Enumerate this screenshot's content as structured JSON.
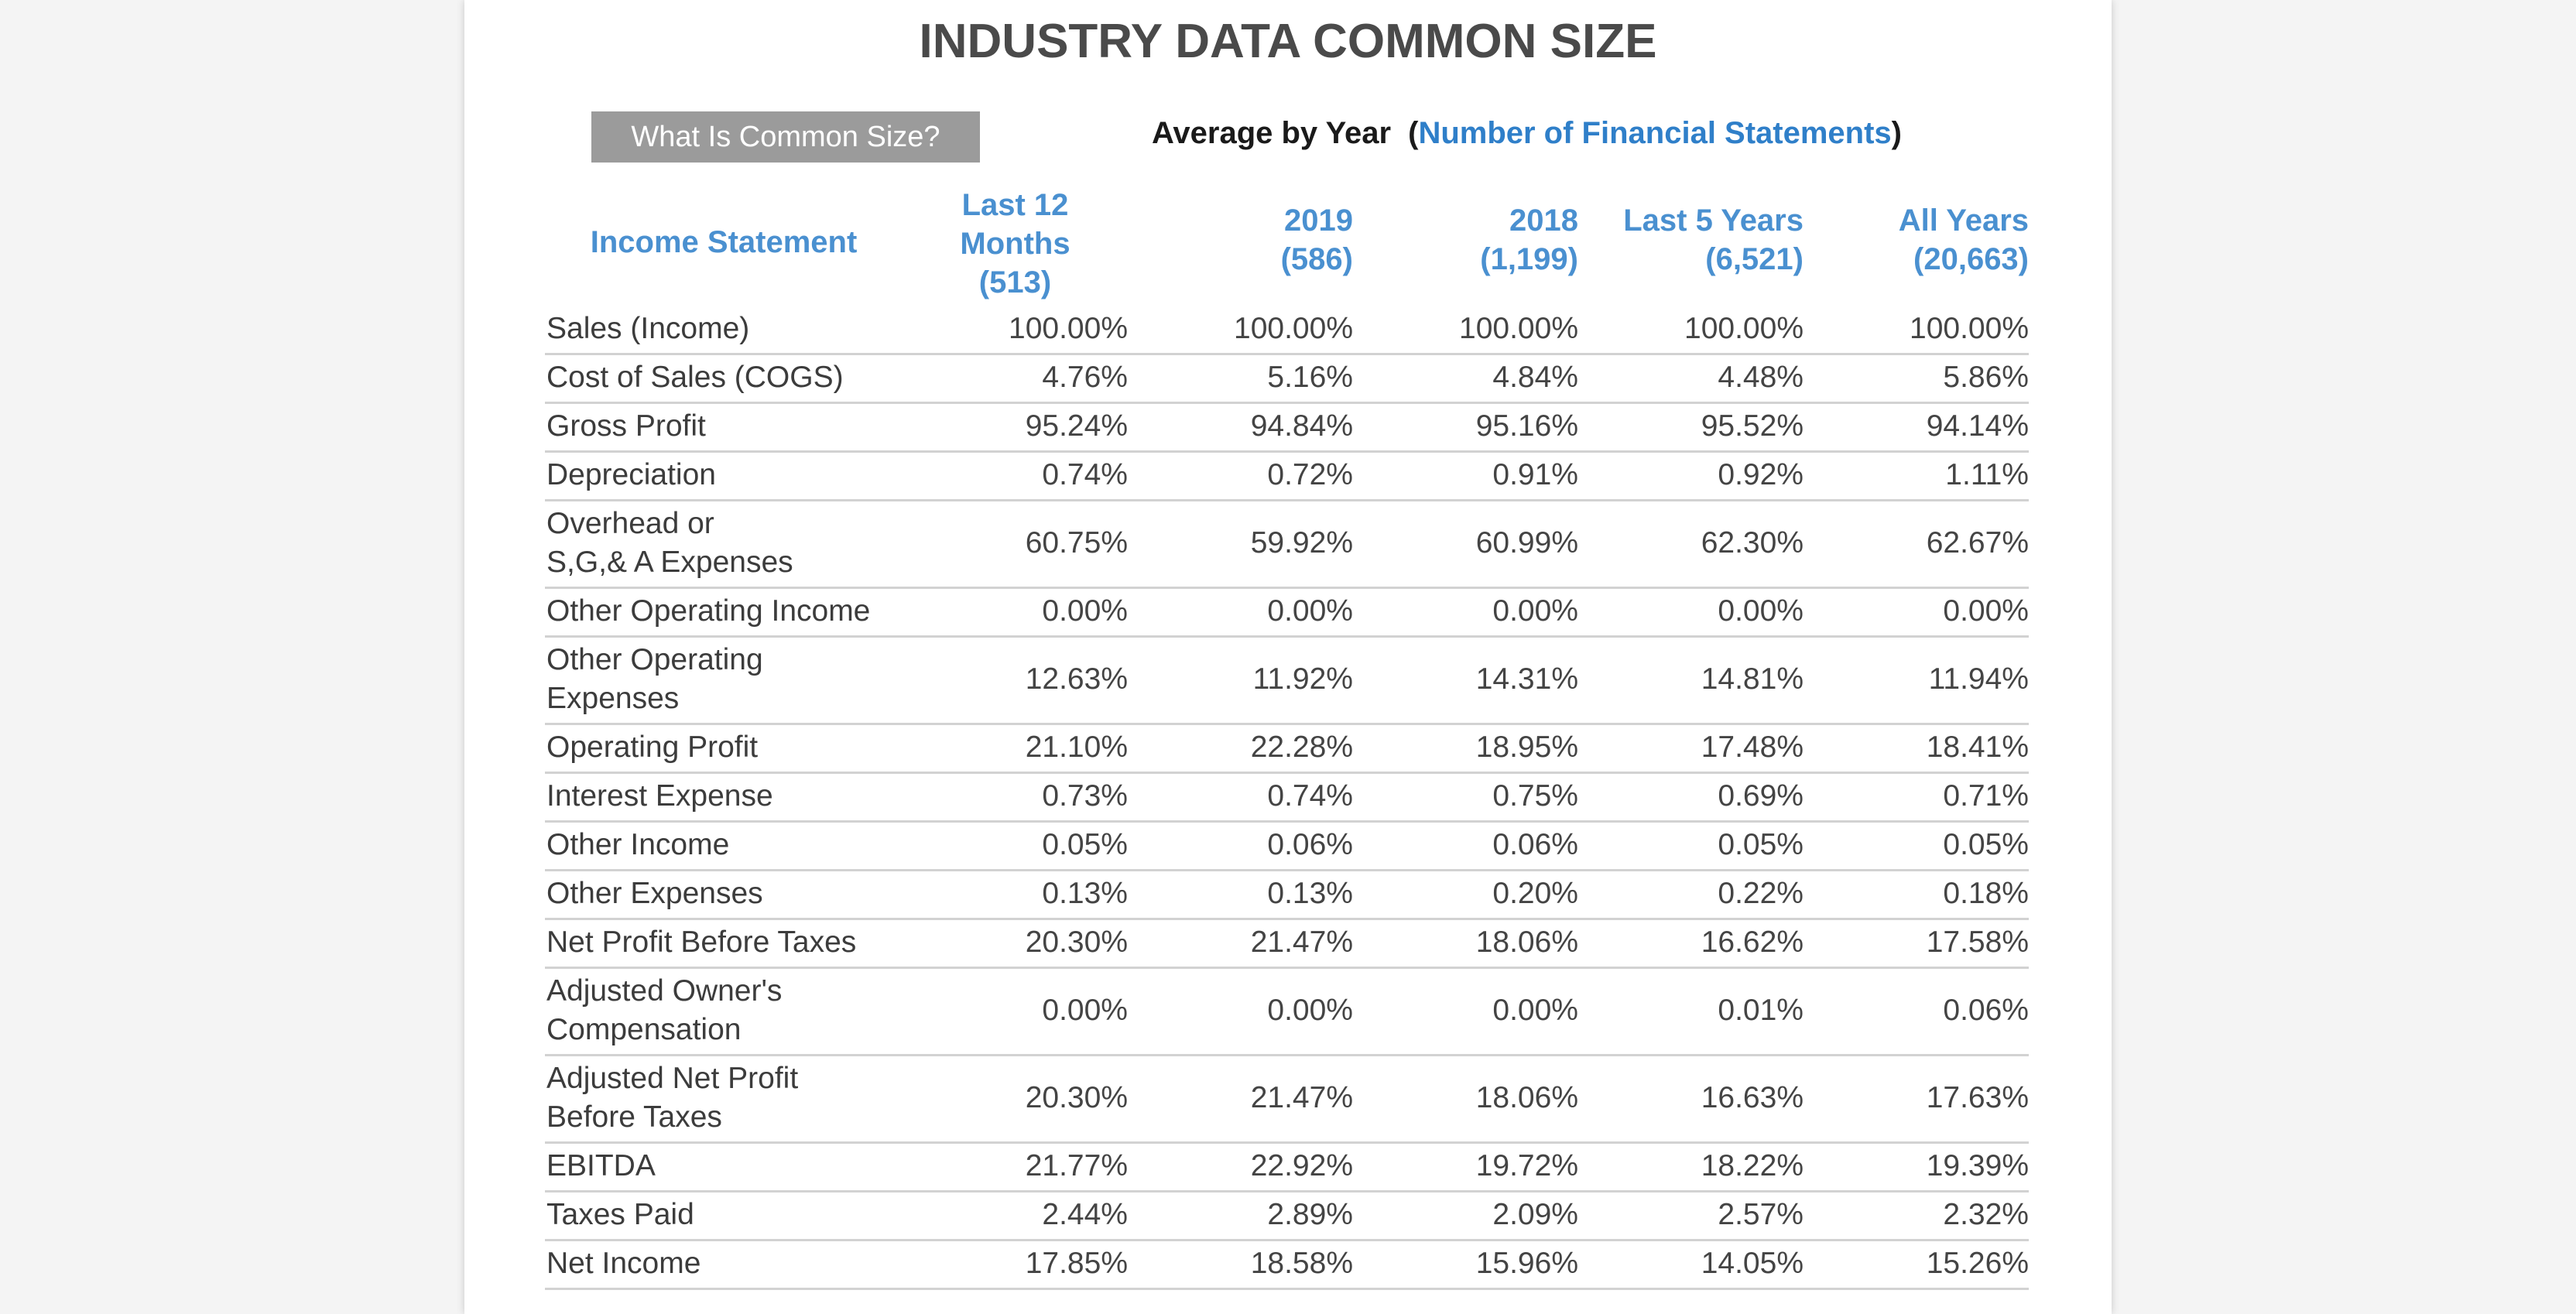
{
  "title": "INDUSTRY DATA COMMON SIZE",
  "common_size_button": "What Is Common Size?",
  "average_heading": {
    "prefix": "Average by Year",
    "open_paren": "(",
    "link": "Number of Financial Statements",
    "close_paren": ")"
  },
  "colors": {
    "header_blue": "#4a90d0",
    "link_blue": "#2f7fc9",
    "button_gray": "#9b9b9b",
    "title_gray": "#4a4a4a"
  },
  "table": {
    "headers": [
      "Income Statement",
      "Last 12 Months (513)",
      "2019 (586)",
      "2018 (1,199)",
      "Last 5 Years (6,521)",
      "All Years (20,663)"
    ],
    "rows": [
      {
        "label": "Sales (Income)",
        "values": [
          "100.00%",
          "100.00%",
          "100.00%",
          "100.00%",
          "100.00%"
        ]
      },
      {
        "label": "Cost of Sales (COGS)",
        "values": [
          "4.76%",
          "5.16%",
          "4.84%",
          "4.48%",
          "5.86%"
        ]
      },
      {
        "label": "Gross Profit",
        "values": [
          "95.24%",
          "94.84%",
          "95.16%",
          "95.52%",
          "94.14%"
        ]
      },
      {
        "label": "Depreciation",
        "values": [
          "0.74%",
          "0.72%",
          "0.91%",
          "0.92%",
          "1.11%"
        ]
      },
      {
        "label": "Overhead or S,G,& A Expenses",
        "values": [
          "60.75%",
          "59.92%",
          "60.99%",
          "62.30%",
          "62.67%"
        ]
      },
      {
        "label": "Other Operating Income",
        "values": [
          "0.00%",
          "0.00%",
          "0.00%",
          "0.00%",
          "0.00%"
        ]
      },
      {
        "label": "Other Operating Expenses",
        "values": [
          "12.63%",
          "11.92%",
          "14.31%",
          "14.81%",
          "11.94%"
        ]
      },
      {
        "label": "Operating Profit",
        "values": [
          "21.10%",
          "22.28%",
          "18.95%",
          "17.48%",
          "18.41%"
        ]
      },
      {
        "label": "Interest Expense",
        "values": [
          "0.73%",
          "0.74%",
          "0.75%",
          "0.69%",
          "0.71%"
        ]
      },
      {
        "label": "Other Income",
        "values": [
          "0.05%",
          "0.06%",
          "0.06%",
          "0.05%",
          "0.05%"
        ]
      },
      {
        "label": "Other Expenses",
        "values": [
          "0.13%",
          "0.13%",
          "0.20%",
          "0.22%",
          "0.18%"
        ]
      },
      {
        "label": "Net Profit Before Taxes",
        "values": [
          "20.30%",
          "21.47%",
          "18.06%",
          "16.62%",
          "17.58%"
        ]
      },
      {
        "label": "Adjusted Owner's Compensation",
        "values": [
          "0.00%",
          "0.00%",
          "0.00%",
          "0.01%",
          "0.06%"
        ]
      },
      {
        "label": "Adjusted Net Profit Before Taxes",
        "values": [
          "20.30%",
          "21.47%",
          "18.06%",
          "16.63%",
          "17.63%"
        ]
      },
      {
        "label": "EBITDA",
        "values": [
          "21.77%",
          "22.92%",
          "19.72%",
          "18.22%",
          "19.39%"
        ]
      },
      {
        "label": "Taxes Paid",
        "values": [
          "2.44%",
          "2.89%",
          "2.09%",
          "2.57%",
          "2.32%"
        ]
      },
      {
        "label": "Net Income",
        "values": [
          "17.85%",
          "18.58%",
          "15.96%",
          "14.05%",
          "15.26%"
        ]
      }
    ]
  }
}
